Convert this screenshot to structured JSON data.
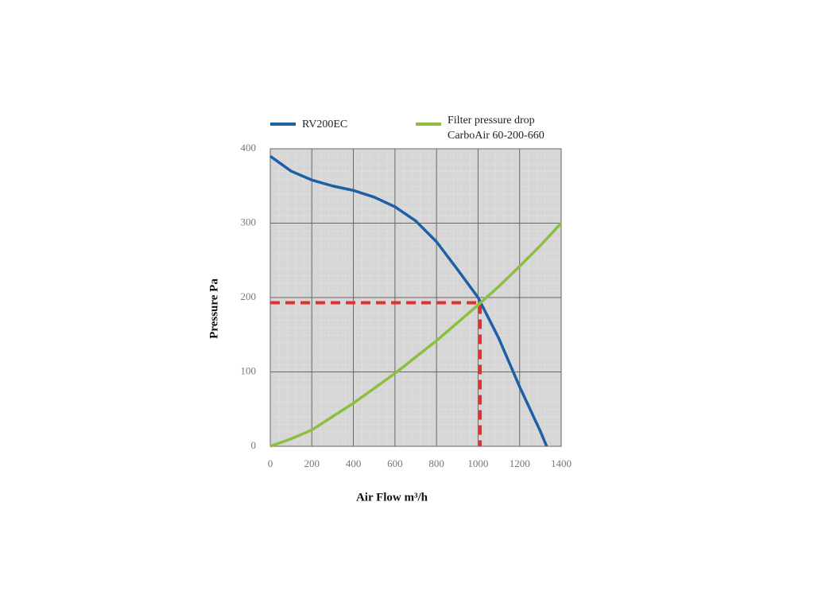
{
  "chart_data": {
    "type": "line",
    "x_label": "Air Flow m³/h",
    "y_label": "Pressure Pa",
    "xlim": [
      0,
      1400
    ],
    "xticks": [
      0,
      200,
      400,
      600,
      800,
      1000,
      1200,
      1400
    ],
    "ylim": [
      0,
      400
    ],
    "yticks": [
      0,
      100,
      200,
      300,
      400
    ],
    "grid": true,
    "series": [
      {
        "name": "RV200EC",
        "color": "#1f5fa6",
        "x": [
          0,
          100,
          200,
          300,
          400,
          500,
          600,
          700,
          800,
          900,
          1000,
          1100,
          1200,
          1300,
          1330
        ],
        "values": [
          390,
          370,
          358,
          350,
          344,
          335,
          322,
          303,
          275,
          238,
          200,
          145,
          80,
          20,
          0
        ]
      },
      {
        "name": "Filter pressure drop CarboAir 60-200-660",
        "color": "#8cbf3f",
        "x": [
          0,
          100,
          200,
          300,
          400,
          500,
          600,
          700,
          800,
          900,
          1000,
          1100,
          1200,
          1300,
          1400
        ],
        "values": [
          0,
          10,
          22,
          40,
          58,
          78,
          98,
          120,
          142,
          166,
          190,
          215,
          242,
          270,
          300
        ]
      }
    ],
    "operating_point": {
      "x": 1010,
      "y": 193,
      "color": "#e03030"
    }
  }
}
